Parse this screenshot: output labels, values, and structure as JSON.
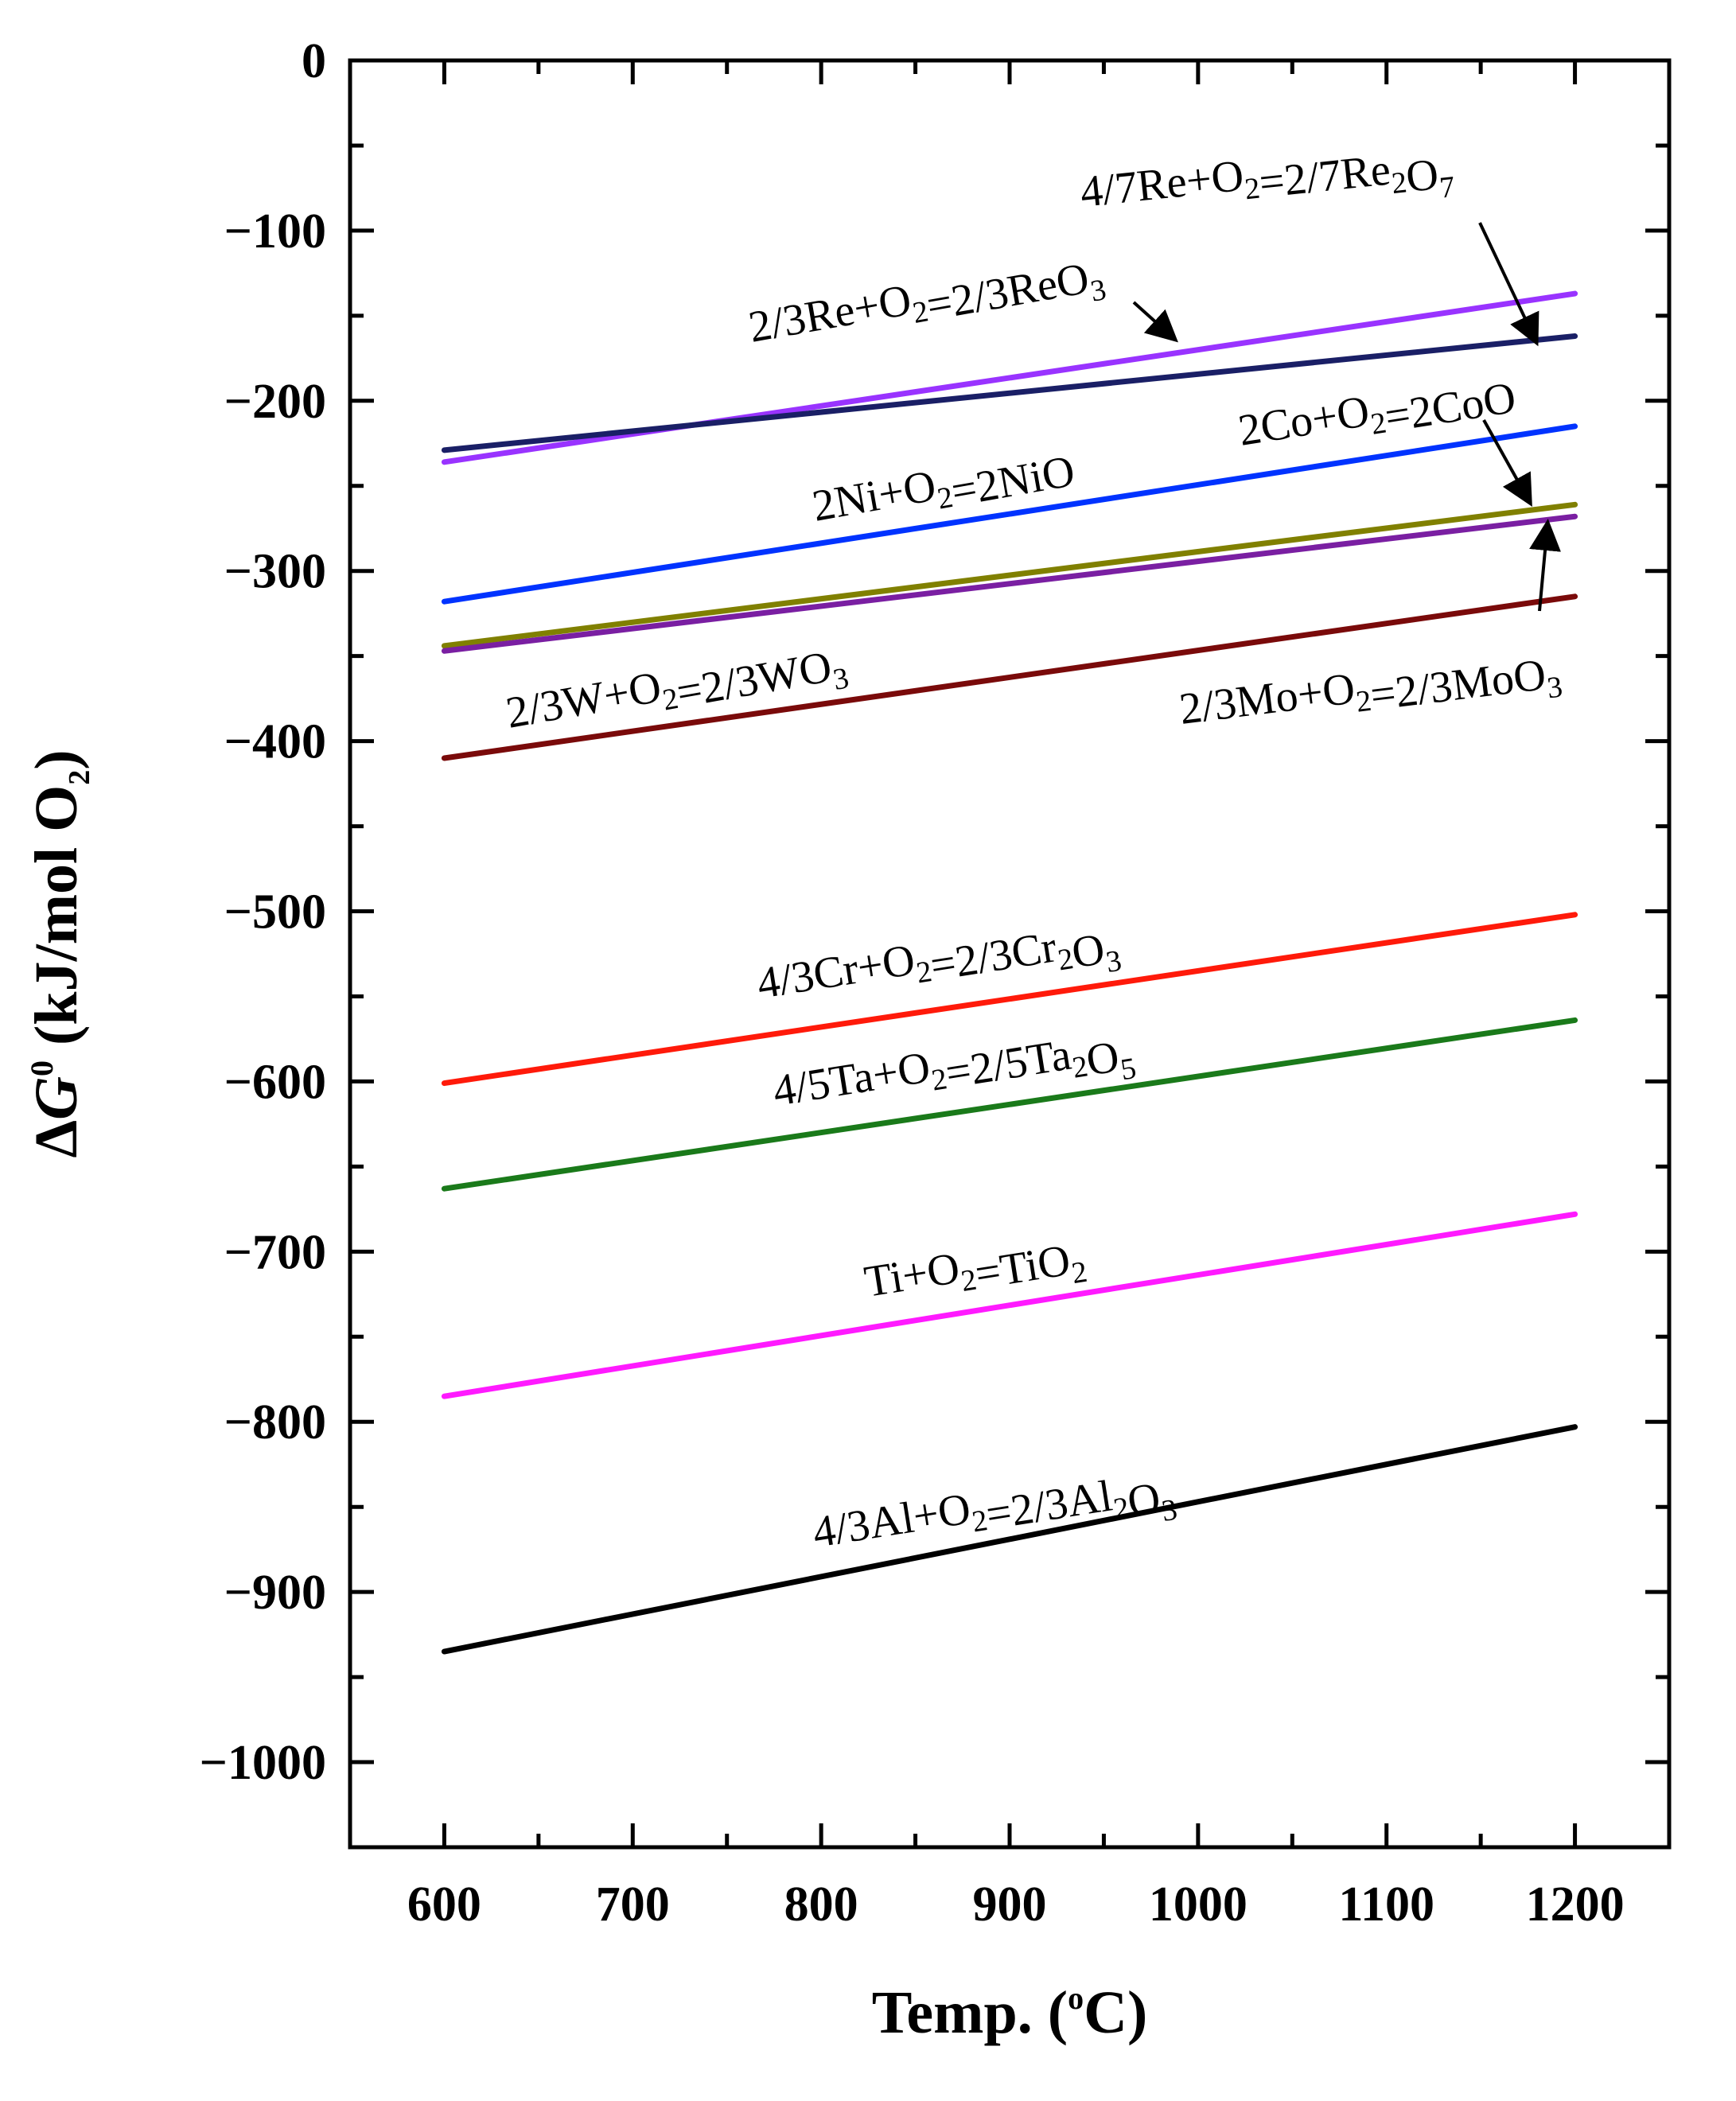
{
  "chart_data": {
    "type": "line",
    "title": "",
    "xlabel": "Temp. (oC)",
    "xlabel_parts": {
      "text": "Temp. (",
      "sup": "o",
      "unit": "C)"
    },
    "ylabel": "ΔG0 (kJ/mol O2)",
    "ylabel_parts": {
      "delta": "Δ",
      "symbol": "G",
      "sup": "0",
      "text": " (kJ/mol O",
      "sub": "2",
      "close": ")"
    },
    "xlim": [
      550,
      1250
    ],
    "ylim": [
      -1050,
      0
    ],
    "xticks": [
      600,
      700,
      800,
      900,
      1000,
      1100,
      1200
    ],
    "xtick_labels": [
      "600",
      "700",
      "800",
      "900",
      "1000",
      "1100",
      "1200"
    ],
    "yticks": [
      0,
      -100,
      -200,
      -300,
      -400,
      -500,
      -600,
      -700,
      -800,
      -900,
      -1000
    ],
    "ytick_labels": [
      "0",
      "−100",
      "−200",
      "−300",
      "−400",
      "−500",
      "−600",
      "−700",
      "−800",
      "−900",
      "−1000"
    ],
    "grid": false,
    "legend": "inline labels",
    "series": [
      {
        "name": "2/3Re+O2=2/3ReO3",
        "color": "#9933ff",
        "x": [
          600,
          1200
        ],
        "y": [
          -236,
          -137
        ],
        "label": [
          {
            "t": "2/3Re+O"
          },
          {
            "t": "2",
            "sub": true
          },
          {
            "t": "=2/3ReO"
          },
          {
            "t": "3",
            "sub": true
          }
        ]
      },
      {
        "name": "4/7Re+O2=2/7Re2O7",
        "color": "#1a1f66",
        "x": [
          600,
          1200
        ],
        "y": [
          -229,
          -162
        ],
        "label": [
          {
            "t": "4/7Re+O"
          },
          {
            "t": "2",
            "sub": true
          },
          {
            "t": "=2/7Re"
          },
          {
            "t": "2",
            "sub": true
          },
          {
            "t": "O"
          },
          {
            "t": "7",
            "sub": true
          }
        ]
      },
      {
        "name": "2Ni+O2=2NiO",
        "color": "#0033ff",
        "x": [
          600,
          1200
        ],
        "y": [
          -318,
          -215
        ],
        "label": [
          {
            "t": "2Ni+O"
          },
          {
            "t": "2",
            "sub": true
          },
          {
            "t": "=2NiO"
          }
        ]
      },
      {
        "name": "2Co+O2=2CoO",
        "color": "#808000",
        "x": [
          600,
          1200
        ],
        "y": [
          -344,
          -261
        ],
        "label": [
          {
            "t": "2Co+O"
          },
          {
            "t": "2",
            "sub": true
          },
          {
            "t": "=2CoO"
          }
        ]
      },
      {
        "name": "2/3Mo+O2=2/3MoO3",
        "color": "#7a1fa2",
        "x": [
          600,
          1200
        ],
        "y": [
          -347,
          -268
        ],
        "label": [
          {
            "t": "2/3Mo+O"
          },
          {
            "t": "2",
            "sub": true
          },
          {
            "t": "=2/3MoO"
          },
          {
            "t": "3",
            "sub": true
          }
        ]
      },
      {
        "name": "2/3W+O2=2/3WO3",
        "color": "#7a0a0a",
        "x": [
          600,
          1200
        ],
        "y": [
          -410,
          -315
        ],
        "label": [
          {
            "t": "2/3W+O"
          },
          {
            "t": "2",
            "sub": true
          },
          {
            "t": "=2/3WO"
          },
          {
            "t": "3",
            "sub": true
          }
        ]
      },
      {
        "name": "4/3Cr+O2=2/3Cr2O3",
        "color": "#ff1a0a",
        "x": [
          600,
          1200
        ],
        "y": [
          -601,
          -502
        ],
        "label": [
          {
            "t": "4/3Cr+O"
          },
          {
            "t": "2",
            "sub": true
          },
          {
            "t": "=2/3Cr"
          },
          {
            "t": "2",
            "sub": true
          },
          {
            "t": "O"
          },
          {
            "t": "3",
            "sub": true
          }
        ]
      },
      {
        "name": "4/5Ta+O2=2/5Ta2O5",
        "color": "#1a7a1a",
        "x": [
          600,
          1200
        ],
        "y": [
          -663,
          -564
        ],
        "label": [
          {
            "t": "4/5Ta+O"
          },
          {
            "t": "2",
            "sub": true
          },
          {
            "t": "=2/5Ta"
          },
          {
            "t": "2",
            "sub": true
          },
          {
            "t": "O"
          },
          {
            "t": "5",
            "sub": true
          }
        ]
      },
      {
        "name": "Ti+O2=TiO2",
        "color": "#ff1aff",
        "x": [
          600,
          1200
        ],
        "y": [
          -785,
          -678
        ],
        "label": [
          {
            "t": "Ti+O"
          },
          {
            "t": "2",
            "sub": true
          },
          {
            "t": "=TiO"
          },
          {
            "t": "2",
            "sub": true
          }
        ]
      },
      {
        "name": "4/3Al+O2=2/3Al2O3",
        "color": "#000000",
        "x": [
          600,
          1200
        ],
        "y": [
          -935,
          -803
        ],
        "label": [
          {
            "t": "4/3Al+O"
          },
          {
            "t": "2",
            "sub": true
          },
          {
            "t": "=2/3Al"
          },
          {
            "t": "2",
            "sub": true
          },
          {
            "t": "O"
          },
          {
            "t": "3",
            "sub": true
          }
        ]
      }
    ]
  }
}
